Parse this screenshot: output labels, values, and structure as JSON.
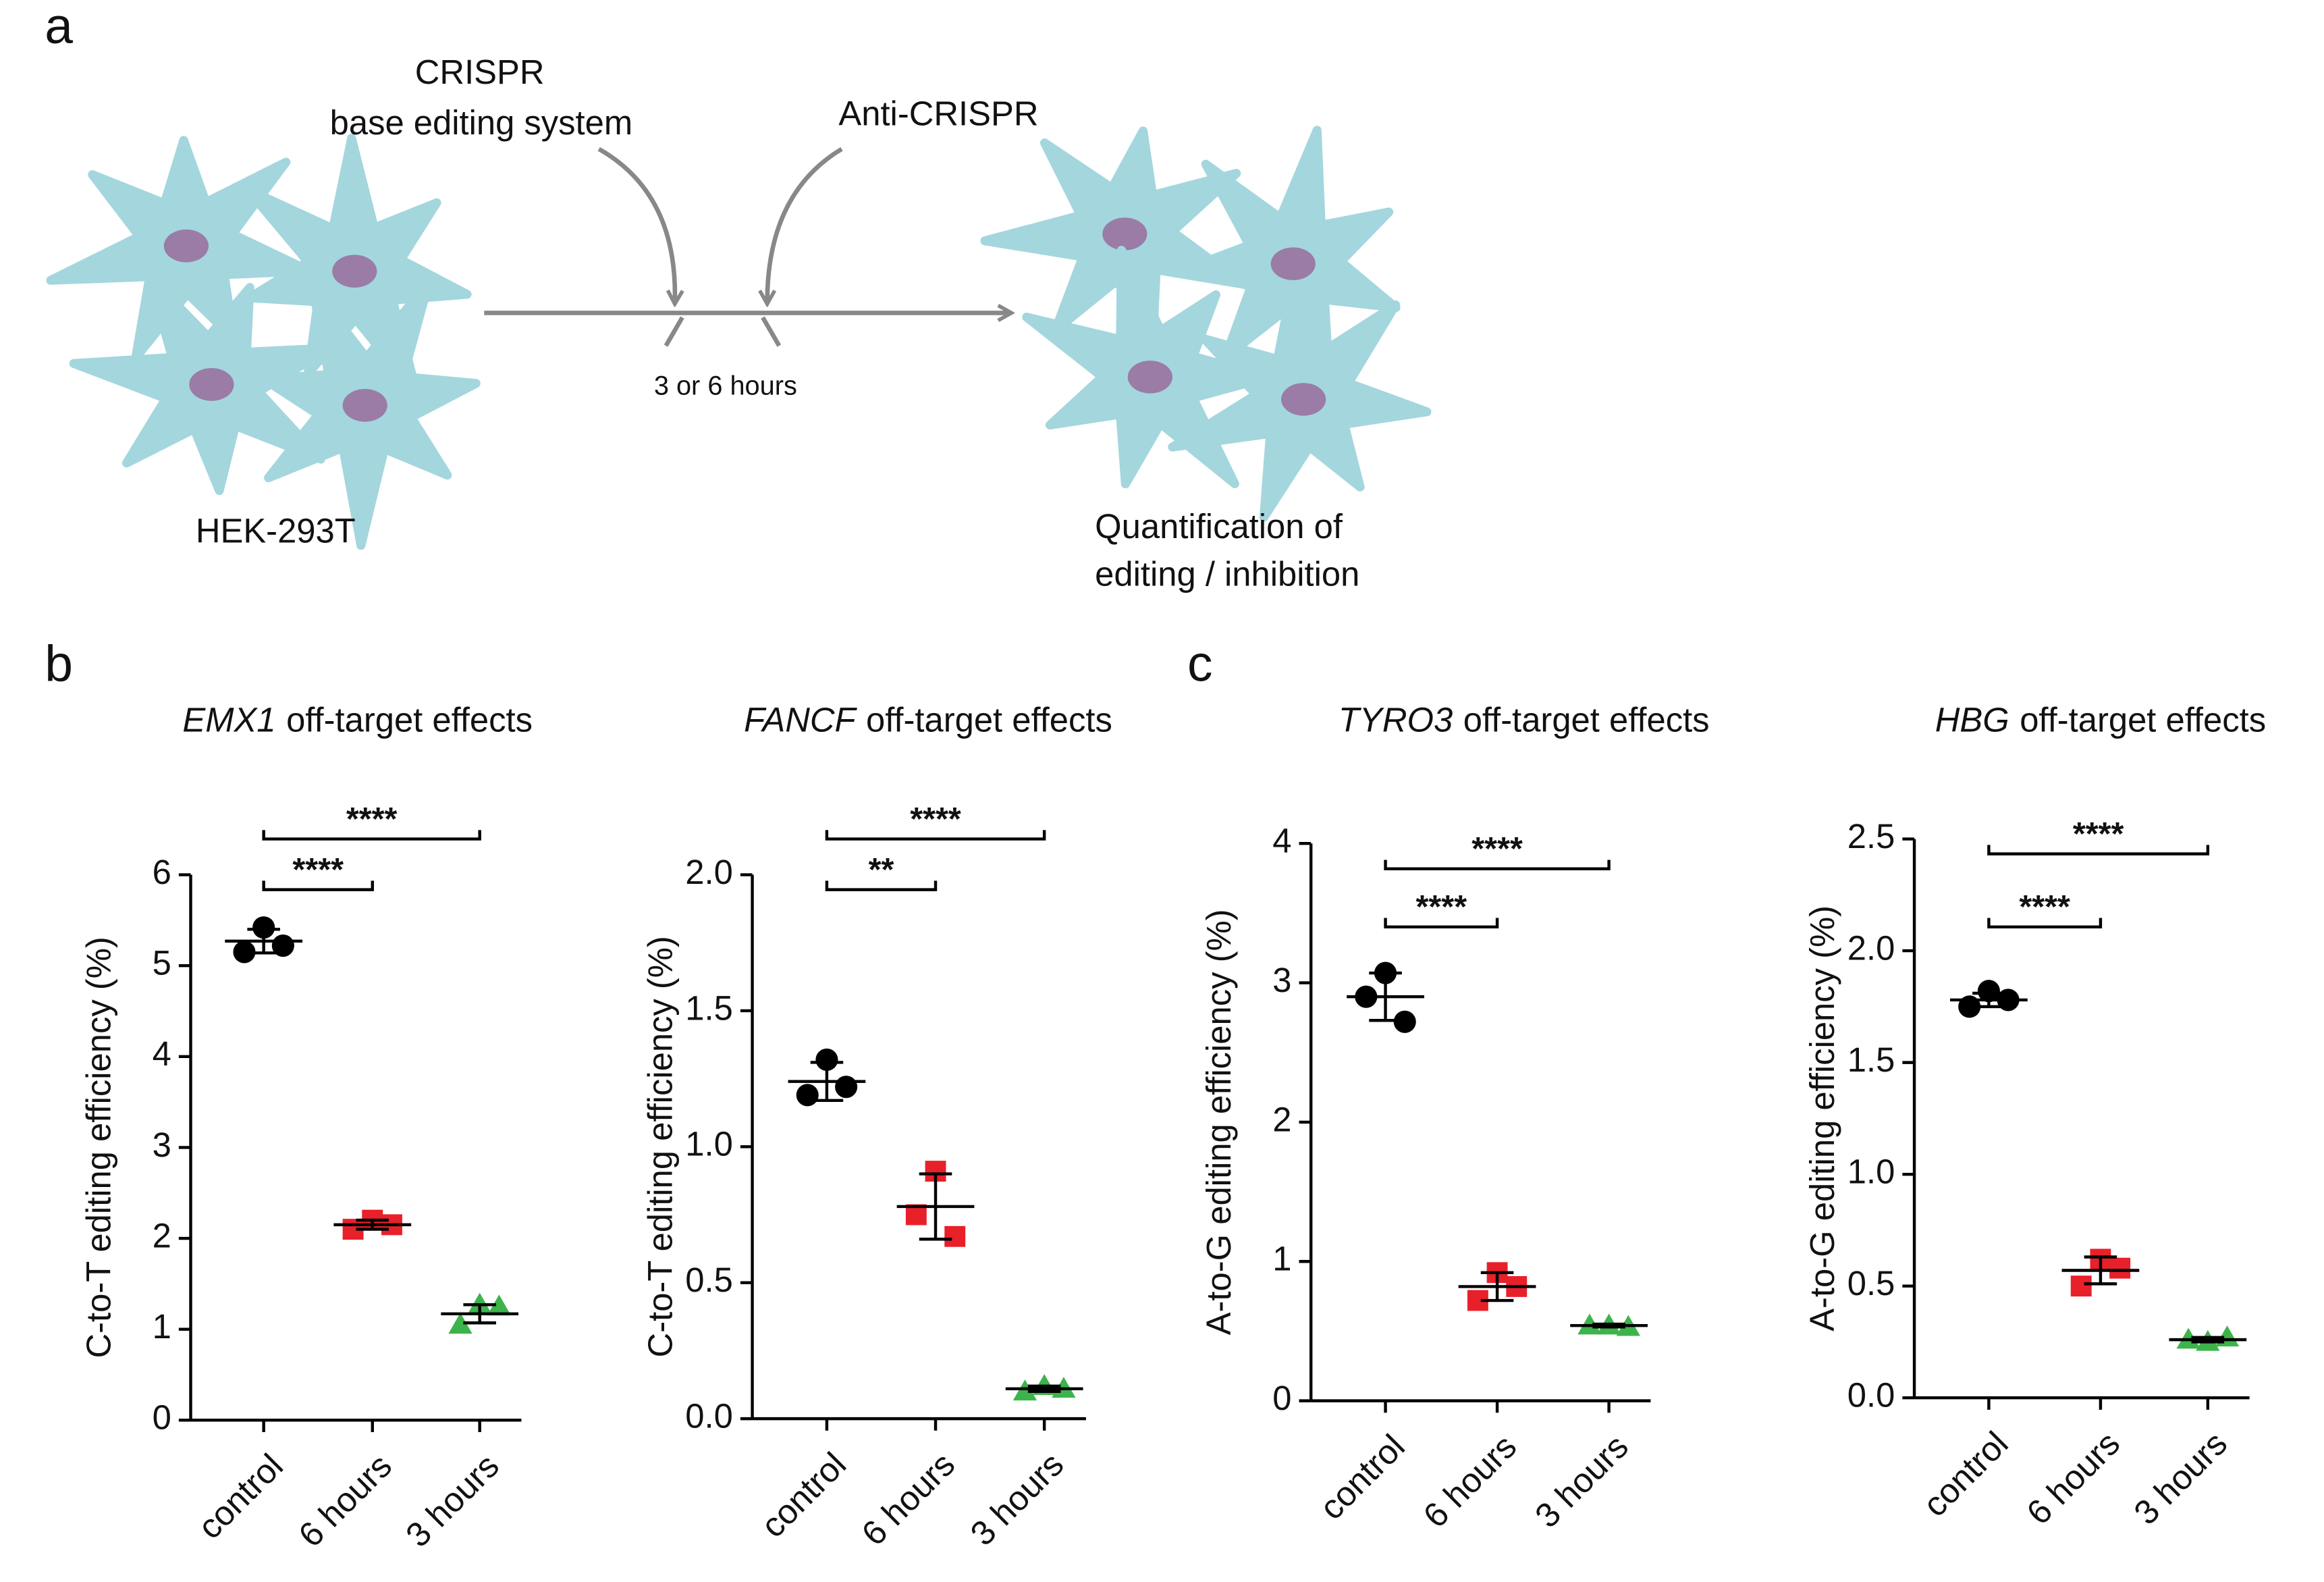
{
  "panel_labels": [
    "a",
    "b",
    "c"
  ],
  "diagram": {
    "input_1": [
      "CRISPR",
      "base editing system"
    ],
    "input_2": "Anti-CRISPR",
    "time_label": "3 or 6 hours",
    "cell_label": "HEK-293T",
    "output": [
      "Quantification of",
      "editing / inhibition"
    ]
  },
  "chart_data": [
    {
      "type": "scatter",
      "title_gene": "EMX1",
      "title": "off-target effects",
      "ylabel": "C-to-T editing efficiency (%)",
      "categories": [
        "control",
        "6 hours",
        "3 hours"
      ],
      "ylim": [
        0,
        6
      ],
      "yticks": [
        0,
        1,
        2,
        3,
        4,
        5,
        6
      ],
      "series": [
        {
          "color": "#000000",
          "marker": "circle",
          "values": [
            5.42,
            5.15,
            5.22
          ],
          "mean": 5.27,
          "sd": 0.13
        },
        {
          "color": "#e8202a",
          "marker": "square",
          "values": [
            2.2,
            2.1,
            2.15
          ],
          "mean": 2.15,
          "sd": 0.05
        },
        {
          "color": "#3cb44b",
          "marker": "triangle",
          "values": [
            1.27,
            1.05,
            1.25
          ],
          "mean": 1.17,
          "sd": 0.1
        }
      ],
      "significance": [
        "****",
        "****"
      ]
    },
    {
      "type": "scatter",
      "title_gene": "FANCF",
      "title": "off-target effects",
      "ylabel": "C-to-T editing efficiency (%)",
      "categories": [
        "control",
        "6 hours",
        "3 hours"
      ],
      "ylim": [
        0,
        2
      ],
      "yticks": [
        {
          "value": 0,
          "label": "0.0"
        },
        0.5,
        {
          "value": 1,
          "label": "1.0"
        },
        1.5,
        {
          "value": 2,
          "label": "2.0"
        }
      ],
      "series": [
        {
          "color": "#000000",
          "marker": "circle",
          "values": [
            1.32,
            1.19,
            1.22
          ],
          "mean": 1.24,
          "sd": 0.07
        },
        {
          "color": "#e8202a",
          "marker": "square",
          "values": [
            0.91,
            0.75,
            0.67
          ],
          "mean": 0.78,
          "sd": 0.12
        },
        {
          "color": "#3cb44b",
          "marker": "triangle",
          "values": [
            0.12,
            0.1,
            0.11
          ],
          "mean": 0.11,
          "sd": 0.01
        }
      ],
      "significance": [
        "**",
        "****"
      ]
    },
    {
      "type": "scatter",
      "title_gene": "TYRO3",
      "title": "off-target effects",
      "ylabel": "A-to-G editing efficiency (%)",
      "categories": [
        "control",
        "6 hours",
        "3 hours"
      ],
      "ylim": [
        0,
        4
      ],
      "yticks": [
        0,
        1,
        2,
        3,
        4
      ],
      "series": [
        {
          "color": "#000000",
          "marker": "circle",
          "values": [
            3.07,
            2.9,
            2.72
          ],
          "mean": 2.9,
          "sd": 0.17
        },
        {
          "color": "#e8202a",
          "marker": "square",
          "values": [
            0.92,
            0.72,
            0.82
          ],
          "mean": 0.82,
          "sd": 0.1
        },
        {
          "color": "#3cb44b",
          "marker": "triangle",
          "values": [
            0.54,
            0.54,
            0.53
          ],
          "mean": 0.54,
          "sd": 0.01
        }
      ],
      "significance": [
        "****",
        "****"
      ]
    },
    {
      "type": "scatter",
      "title_gene": "HBG",
      "title": "off-target effects",
      "ylabel": "A-to-G editing efficiency (%)",
      "categories": [
        "control",
        "6 hours",
        "3 hours"
      ],
      "ylim": [
        0,
        2.5
      ],
      "yticks": [
        {
          "value": 0,
          "label": "0.0"
        },
        0.5,
        {
          "value": 1,
          "label": "1.0"
        },
        1.5,
        {
          "value": 2,
          "label": "2.0"
        },
        2.5
      ],
      "series": [
        {
          "color": "#000000",
          "marker": "circle",
          "values": [
            1.82,
            1.75,
            1.78
          ],
          "mean": 1.78,
          "sd": 0.03
        },
        {
          "color": "#e8202a",
          "marker": "square",
          "values": [
            0.62,
            0.5,
            0.58
          ],
          "mean": 0.57,
          "sd": 0.06
        },
        {
          "color": "#3cb44b",
          "marker": "triangle",
          "values": [
            0.25,
            0.26,
            0.27
          ],
          "mean": 0.26,
          "sd": 0.01
        }
      ],
      "significance": [
        "****",
        "****"
      ]
    }
  ]
}
